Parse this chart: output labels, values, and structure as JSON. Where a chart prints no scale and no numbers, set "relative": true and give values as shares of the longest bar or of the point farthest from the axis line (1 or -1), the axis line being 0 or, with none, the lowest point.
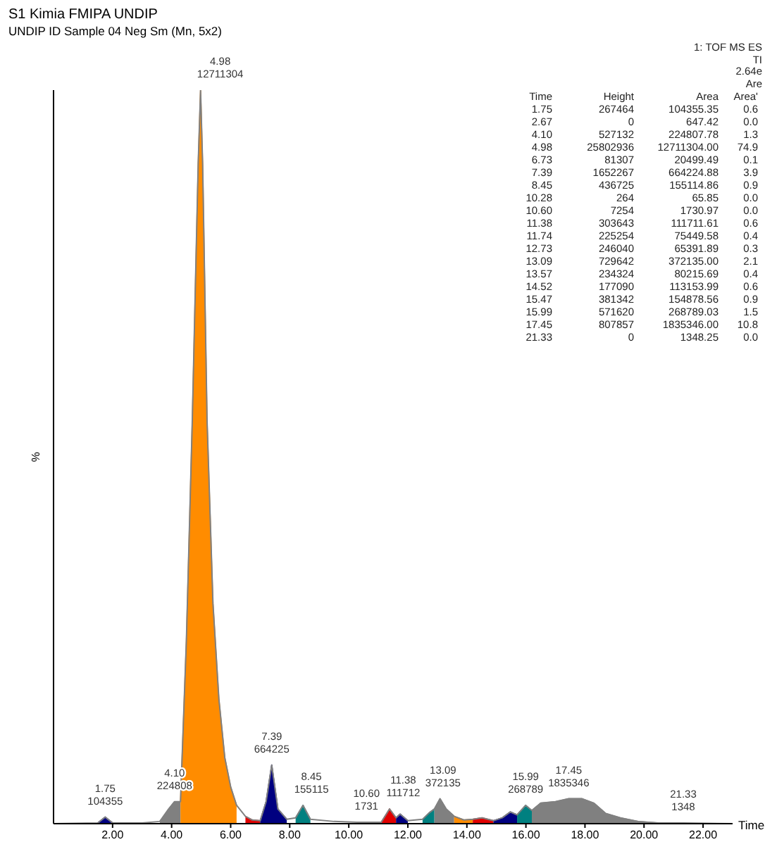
{
  "chart_data": {
    "type": "area",
    "title": "S1 Kimia FMIPA UNDIP",
    "subtitle": "UNDIP ID Sample 04 Neg Sm (Mn, 5x2)",
    "ylabel": "%",
    "xlabel": "Time",
    "relative": true,
    "xlim": [
      0,
      23
    ],
    "xticks": [
      {
        "value": 2,
        "label": "2.00"
      },
      {
        "value": 4,
        "label": "4.00"
      },
      {
        "value": 6,
        "label": "6.00"
      },
      {
        "value": 8,
        "label": "8.00"
      },
      {
        "value": 10,
        "label": "10.00"
      },
      {
        "value": 12,
        "label": "12.00"
      },
      {
        "value": 14,
        "label": "14.00"
      },
      {
        "value": 16,
        "label": "16.00"
      },
      {
        "value": 18,
        "label": "18.00"
      },
      {
        "value": 20,
        "label": "20.00"
      },
      {
        "value": 22,
        "label": "22.00"
      }
    ],
    "series": [
      {
        "type": "line",
        "color": "#808080",
        "x": [
          0,
          1.5,
          1.75,
          2.0,
          3.0,
          3.6,
          3.9,
          4.1,
          4.3,
          4.5,
          4.7,
          4.9,
          4.98,
          5.05,
          5.2,
          5.4,
          5.6,
          5.8,
          6.0,
          6.2,
          6.5,
          6.73,
          7.0,
          7.2,
          7.39,
          7.6,
          7.9,
          8.2,
          8.45,
          8.7,
          9.5,
          10.28,
          10.6,
          11.1,
          11.38,
          11.6,
          11.74,
          12.0,
          12.5,
          12.73,
          12.9,
          13.09,
          13.3,
          13.57,
          13.9,
          14.2,
          14.52,
          14.9,
          15.2,
          15.47,
          15.7,
          15.99,
          16.2,
          16.5,
          17.0,
          17.45,
          17.9,
          18.3,
          18.7,
          19.2,
          19.8,
          20.5,
          21.33,
          23
        ],
        "values": [
          0,
          0.001,
          0.009,
          0.001,
          0.001,
          0.003,
          0.02,
          0.03,
          0.03,
          0.25,
          0.55,
          0.9,
          1,
          0.9,
          0.55,
          0.3,
          0.17,
          0.09,
          0.05,
          0.025,
          0.01,
          0.005,
          0.004,
          0.03,
          0.08,
          0.02,
          0.006,
          0.008,
          0.025,
          0.006,
          0.003,
          0.002,
          0.002,
          0.002,
          0.02,
          0.008,
          0.013,
          0.004,
          0.006,
          0.015,
          0.02,
          0.034,
          0.02,
          0.01,
          0.005,
          0.006,
          0.008,
          0.004,
          0.008,
          0.016,
          0.012,
          0.025,
          0.018,
          0.028,
          0.03,
          0.034,
          0.034,
          0.028,
          0.014,
          0.008,
          0.003,
          0.001,
          0.001,
          0
        ]
      },
      {
        "color": "#000080",
        "x": [
          1.5,
          1.75,
          2.0
        ],
        "values": [
          0.001,
          0.009,
          0.001
        ]
      },
      {
        "color": "#808080",
        "x": [
          3.6,
          3.9,
          4.1,
          4.3
        ],
        "values": [
          0.003,
          0.02,
          0.03,
          0.03
        ]
      },
      {
        "color": "#ff8c00",
        "x": [
          4.3,
          4.5,
          4.7,
          4.9,
          4.98,
          5.05,
          5.2,
          5.4,
          5.6,
          5.8,
          6.0,
          6.2
        ],
        "values": [
          0.03,
          0.25,
          0.55,
          0.9,
          1,
          0.9,
          0.55,
          0.3,
          0.17,
          0.09,
          0.05,
          0.025
        ]
      },
      {
        "color": "#e00000",
        "x": [
          6.5,
          6.73,
          7.0
        ],
        "values": [
          0.01,
          0.005,
          0.004
        ]
      },
      {
        "color": "#000080",
        "x": [
          7.0,
          7.2,
          7.39,
          7.6,
          7.9
        ],
        "values": [
          0.004,
          0.03,
          0.08,
          0.02,
          0.006
        ]
      },
      {
        "color": "#008080",
        "x": [
          8.2,
          8.45,
          8.7
        ],
        "values": [
          0.008,
          0.025,
          0.006
        ]
      },
      {
        "color": "#e00000",
        "x": [
          11.1,
          11.38,
          11.6
        ],
        "values": [
          0.002,
          0.02,
          0.008
        ]
      },
      {
        "color": "#000080",
        "x": [
          11.6,
          11.74,
          12.0
        ],
        "values": [
          0.008,
          0.013,
          0.004
        ]
      },
      {
        "color": "#008080",
        "x": [
          12.5,
          12.73,
          12.9
        ],
        "values": [
          0.006,
          0.015,
          0.02
        ]
      },
      {
        "color": "#808080",
        "x": [
          12.9,
          13.09,
          13.3,
          13.57
        ],
        "values": [
          0.02,
          0.034,
          0.02,
          0.01
        ]
      },
      {
        "color": "#ff8c00",
        "x": [
          13.57,
          13.9,
          14.2
        ],
        "values": [
          0.01,
          0.005,
          0.006
        ]
      },
      {
        "color": "#e00000",
        "x": [
          14.2,
          14.52,
          14.9
        ],
        "values": [
          0.006,
          0.008,
          0.004
        ]
      },
      {
        "color": "#000080",
        "x": [
          14.9,
          15.2,
          15.47,
          15.7
        ],
        "values": [
          0.004,
          0.008,
          0.016,
          0.012
        ]
      },
      {
        "color": "#008080",
        "x": [
          15.7,
          15.99,
          16.2
        ],
        "values": [
          0.012,
          0.025,
          0.018
        ]
      },
      {
        "color": "#808080",
        "x": [
          16.2,
          16.5,
          17.0,
          17.45,
          17.9,
          18.3,
          18.7,
          19.2,
          19.8,
          20.5
        ],
        "values": [
          0.018,
          0.028,
          0.03,
          0.034,
          0.034,
          0.028,
          0.014,
          0.008,
          0.003,
          0.001
        ]
      }
    ],
    "annotations": [
      "1: TOF MS ES",
      "TI",
      "2.64e",
      "Are",
      "Time Height Area Area'",
      "1.75 267464 104355.35 0.6",
      "2.67 0 647.42 0.0",
      "4.10 527132 224807.78 1.3",
      "4.98 25802936 12711304.00 74.9",
      "6.73 81307 20499.49 0.1",
      "7.39 1652267 664224.88 3.9",
      "8.45 436725 155114.86 0.9",
      "10.28 264 65.85 0.0",
      "10.60 7254 1730.97 0.0",
      "11.38 303643 111711.61 0.6",
      "11.74 225254 75449.58 0.4",
      "12.73 246040 65391.89 0.3",
      "13.09 729642 372135.00 2.1",
      "13.57 234324 80215.69 0.4",
      "14.52 177090 113153.99 0.6",
      "15.47 381342 154878.56 0.9",
      "15.99 571620 268789.03 1.5",
      "17.45 807857 1835346.00 10.8",
      "21.33 0 1348.25 0.0",
      {
        "text": "1.75\n104355",
        "x": 1.75,
        "y": 0.009
      },
      {
        "text": "4.10\n224808",
        "x": 4.1,
        "y": 0.03
      },
      {
        "text": "4.98\n12711304",
        "x": 4.98,
        "y": 1
      },
      {
        "text": "7.39\n664225",
        "x": 7.39,
        "y": 0.08
      },
      {
        "text": "8.45\n155115",
        "x": 8.45,
        "y": 0.025
      },
      {
        "text": "10.60\n1731",
        "x": 10.6,
        "y": 0.002
      },
      {
        "text": "11.38\n111712",
        "x": 11.38,
        "y": 0.02
      },
      {
        "text": "13.09\n372135",
        "x": 13.09,
        "y": 0.034
      },
      {
        "text": "15.99\n268789",
        "x": 15.99,
        "y": 0.025
      },
      {
        "text": "17.45\n1835346",
        "x": 17.45,
        "y": 0.034
      },
      {
        "text": "21.33\n1348",
        "x": 21.33,
        "y": 0.001
      }
    ]
  }
}
